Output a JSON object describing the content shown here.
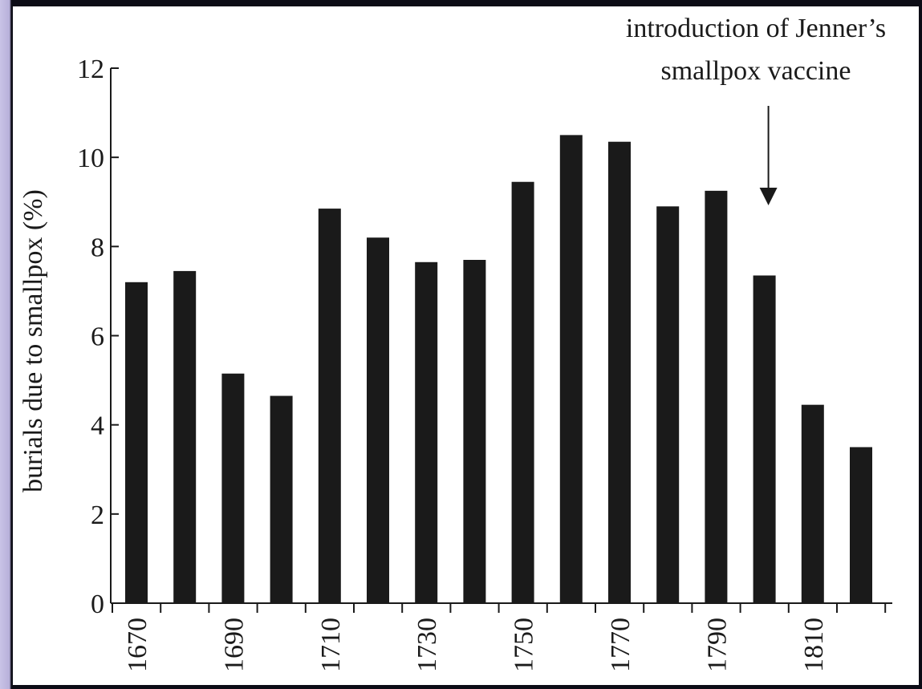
{
  "chart_data": {
    "type": "bar",
    "categories": [
      "1670",
      "1680",
      "1690",
      "1700",
      "1710",
      "1720",
      "1730",
      "1740",
      "1750",
      "1760",
      "1770",
      "1780",
      "1790",
      "1800",
      "1810",
      "1820"
    ],
    "values": [
      7.2,
      7.45,
      5.15,
      4.65,
      8.85,
      8.2,
      7.65,
      7.7,
      9.45,
      10.5,
      10.35,
      8.9,
      9.25,
      7.35,
      4.45,
      3.5
    ],
    "x_tick_labels": [
      "1670",
      "1690",
      "1710",
      "1730",
      "1750",
      "1770",
      "1790",
      "1810"
    ],
    "y_ticks": [
      0,
      2,
      4,
      6,
      8,
      10,
      12
    ],
    "ylim": [
      0,
      12
    ],
    "ylabel": "burials due to smallpox (%)",
    "xlabel": "",
    "title": "",
    "bar_color": "#1a1a1a",
    "annotation": {
      "line1": "introduction of Jenner’s",
      "line2": "smallpox vaccine",
      "category": "1800"
    }
  }
}
